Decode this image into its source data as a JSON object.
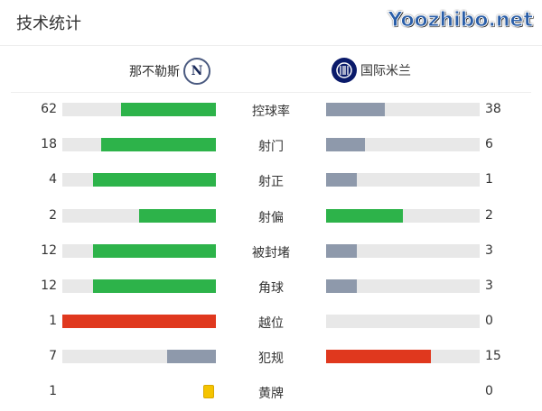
{
  "title": "技术统计",
  "home": {
    "name": "那不勒斯",
    "logo": "N"
  },
  "away": {
    "name": "国际米兰"
  },
  "colors": {
    "green": "#2db34a",
    "gray": "#8e99ab",
    "red": "#e0381e",
    "yellow": "#f5c400"
  },
  "stats": [
    {
      "label": "控球率",
      "home": "62",
      "away": "38",
      "hv": 62,
      "av": 38,
      "hc": "green",
      "ac": "gray"
    },
    {
      "label": "射门",
      "home": "18",
      "away": "6",
      "hv": 18,
      "av": 6,
      "hc": "green",
      "ac": "gray"
    },
    {
      "label": "射正",
      "home": "4",
      "away": "1",
      "hv": 4,
      "av": 1,
      "hc": "green",
      "ac": "gray"
    },
    {
      "label": "射偏",
      "home": "2",
      "away": "2",
      "hv": 2,
      "av": 2,
      "hc": "green",
      "ac": "green"
    },
    {
      "label": "被封堵",
      "home": "12",
      "away": "3",
      "hv": 12,
      "av": 3,
      "hc": "green",
      "ac": "gray"
    },
    {
      "label": "角球",
      "home": "12",
      "away": "3",
      "hv": 12,
      "av": 3,
      "hc": "green",
      "ac": "gray"
    },
    {
      "label": "越位",
      "home": "1",
      "away": "0",
      "hv": 1,
      "av": 0,
      "hc": "red",
      "ac": "gray"
    },
    {
      "label": "犯规",
      "home": "7",
      "away": "15",
      "hv": 7,
      "av": 15,
      "hc": "gray",
      "ac": "red"
    }
  ],
  "yellow": {
    "label": "黄牌",
    "home": "1",
    "away": "0"
  },
  "watermark": "Yoozhibo.net"
}
